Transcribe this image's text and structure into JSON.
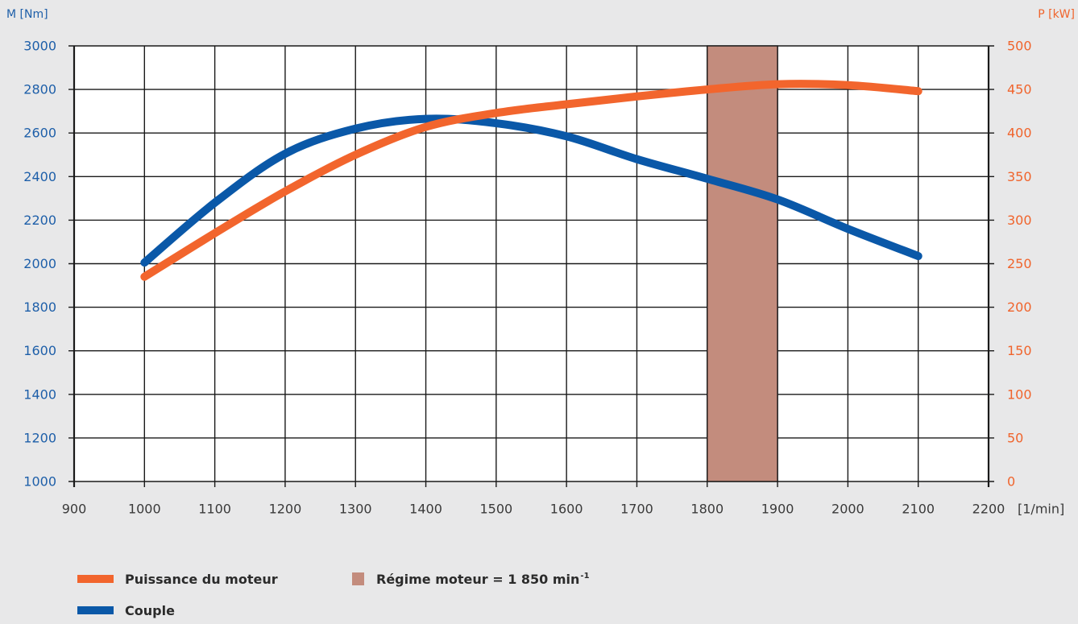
{
  "chart_data": {
    "type": "line",
    "ylabel": "M [Nm]",
    "y2label": "P [kW]",
    "xlabel": "[1/min]",
    "xlim": [
      900,
      2200
    ],
    "ylim": [
      1000,
      3000
    ],
    "y2lim": [
      0,
      500
    ],
    "x_ticks": [
      900,
      1000,
      1100,
      1200,
      1300,
      1400,
      1500,
      1600,
      1700,
      1800,
      1900,
      2000,
      2100,
      2200
    ],
    "y_ticks": [
      3000,
      2800,
      2600,
      2400,
      2200,
      2000,
      1800,
      1600,
      1400,
      1200,
      1000
    ],
    "y2_ticks": [
      500,
      450,
      400,
      350,
      300,
      250,
      200,
      150,
      100,
      50,
      0
    ],
    "x": [
      1000,
      1100,
      1200,
      1300,
      1400,
      1500,
      1600,
      1700,
      1800,
      1900,
      2000,
      2100
    ],
    "series": [
      {
        "name": "Puissance du moteur",
        "axis": "right",
        "color": "#f2652d",
        "values": [
          235,
          285,
          333,
          375,
          407,
          423,
          433,
          442,
          450,
          456,
          455,
          448
        ]
      },
      {
        "name": "Couple",
        "axis": "left",
        "color": "#0a58a8",
        "values": [
          2005,
          2280,
          2505,
          2620,
          2665,
          2645,
          2585,
          2480,
          2390,
          2295,
          2160,
          2035
        ]
      }
    ],
    "band": {
      "label": "Régime moteur = 1 850 min",
      "label_sup": "-1",
      "x_range": [
        1800,
        1900
      ],
      "color": "#c38c7d"
    },
    "axis_colors": {
      "left": "#1e5fa9",
      "right": "#f0642c",
      "x": "#3a3a3a"
    },
    "grid": true,
    "legend_position": "bottom-left"
  }
}
